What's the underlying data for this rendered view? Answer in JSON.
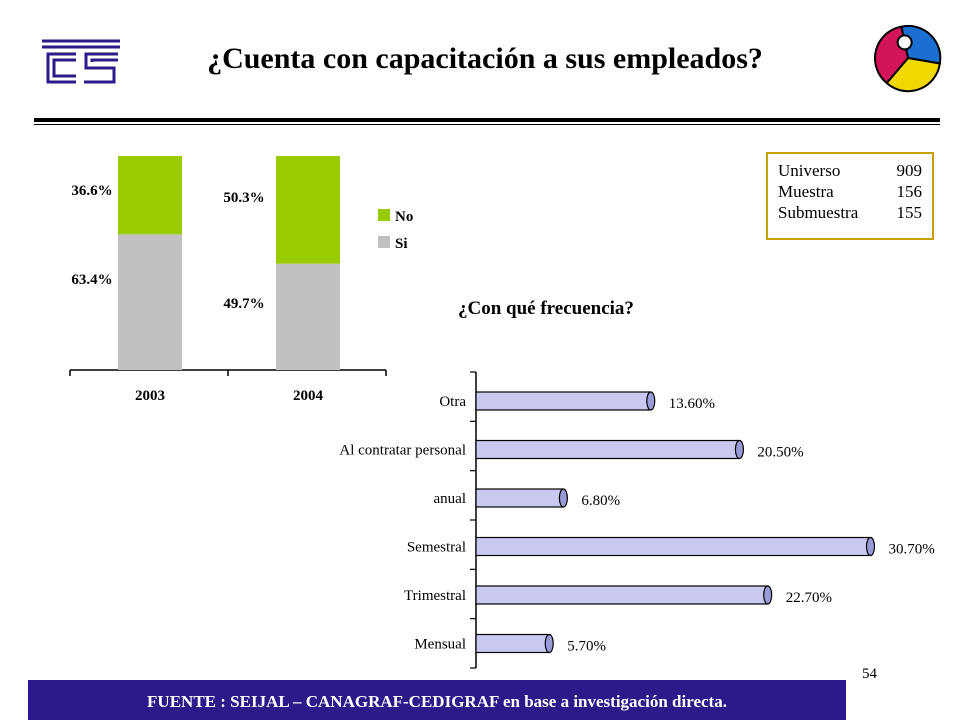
{
  "title": "¿Cuenta con capacitación a sus empleados?",
  "stats": {
    "rows": [
      {
        "label": "Universo",
        "value": "909"
      },
      {
        "label": "Muestra",
        "value": "156"
      },
      {
        "label": "Submuestra",
        "value": "155"
      }
    ]
  },
  "frequency_question": "¿Con qué frecuencia?",
  "page_number": "54",
  "source": "FUENTE : SEIJAL – CANAGRAF-CEDIGRAF en base a investigación directa.",
  "colors": {
    "si": "#c0c0c0",
    "no": "#99cc00",
    "hbar": "#c8c8f0",
    "source_bg": "#2b1a8a",
    "stats_border": "#c8a000"
  },
  "chart_data": [
    {
      "type": "bar",
      "stacked": true,
      "categories": [
        "2003",
        "2004"
      ],
      "series": [
        {
          "name": "Si",
          "values": [
            63.4,
            49.7
          ],
          "labels": [
            "63.4%",
            "49.7%"
          ]
        },
        {
          "name": "No",
          "values": [
            36.6,
            50.3
          ],
          "labels": [
            "36.6%",
            "50.3%"
          ]
        }
      ],
      "legend": [
        "No",
        "Si"
      ],
      "legend_position": "right",
      "ylim": [
        0,
        100
      ]
    },
    {
      "type": "bar",
      "orientation": "horizontal",
      "title": "¿Con qué frecuencia?",
      "categories": [
        "Otra",
        "Al contratar personal",
        "anual",
        "Semestral",
        "Trimestral",
        "Mensual"
      ],
      "values": [
        13.6,
        20.5,
        6.8,
        30.7,
        22.7,
        5.7
      ],
      "labels": [
        "13.60%",
        "20.50%",
        "6.80%",
        "30.70%",
        "22.70%",
        "5.70%"
      ],
      "xlim": [
        0,
        31
      ]
    }
  ]
}
